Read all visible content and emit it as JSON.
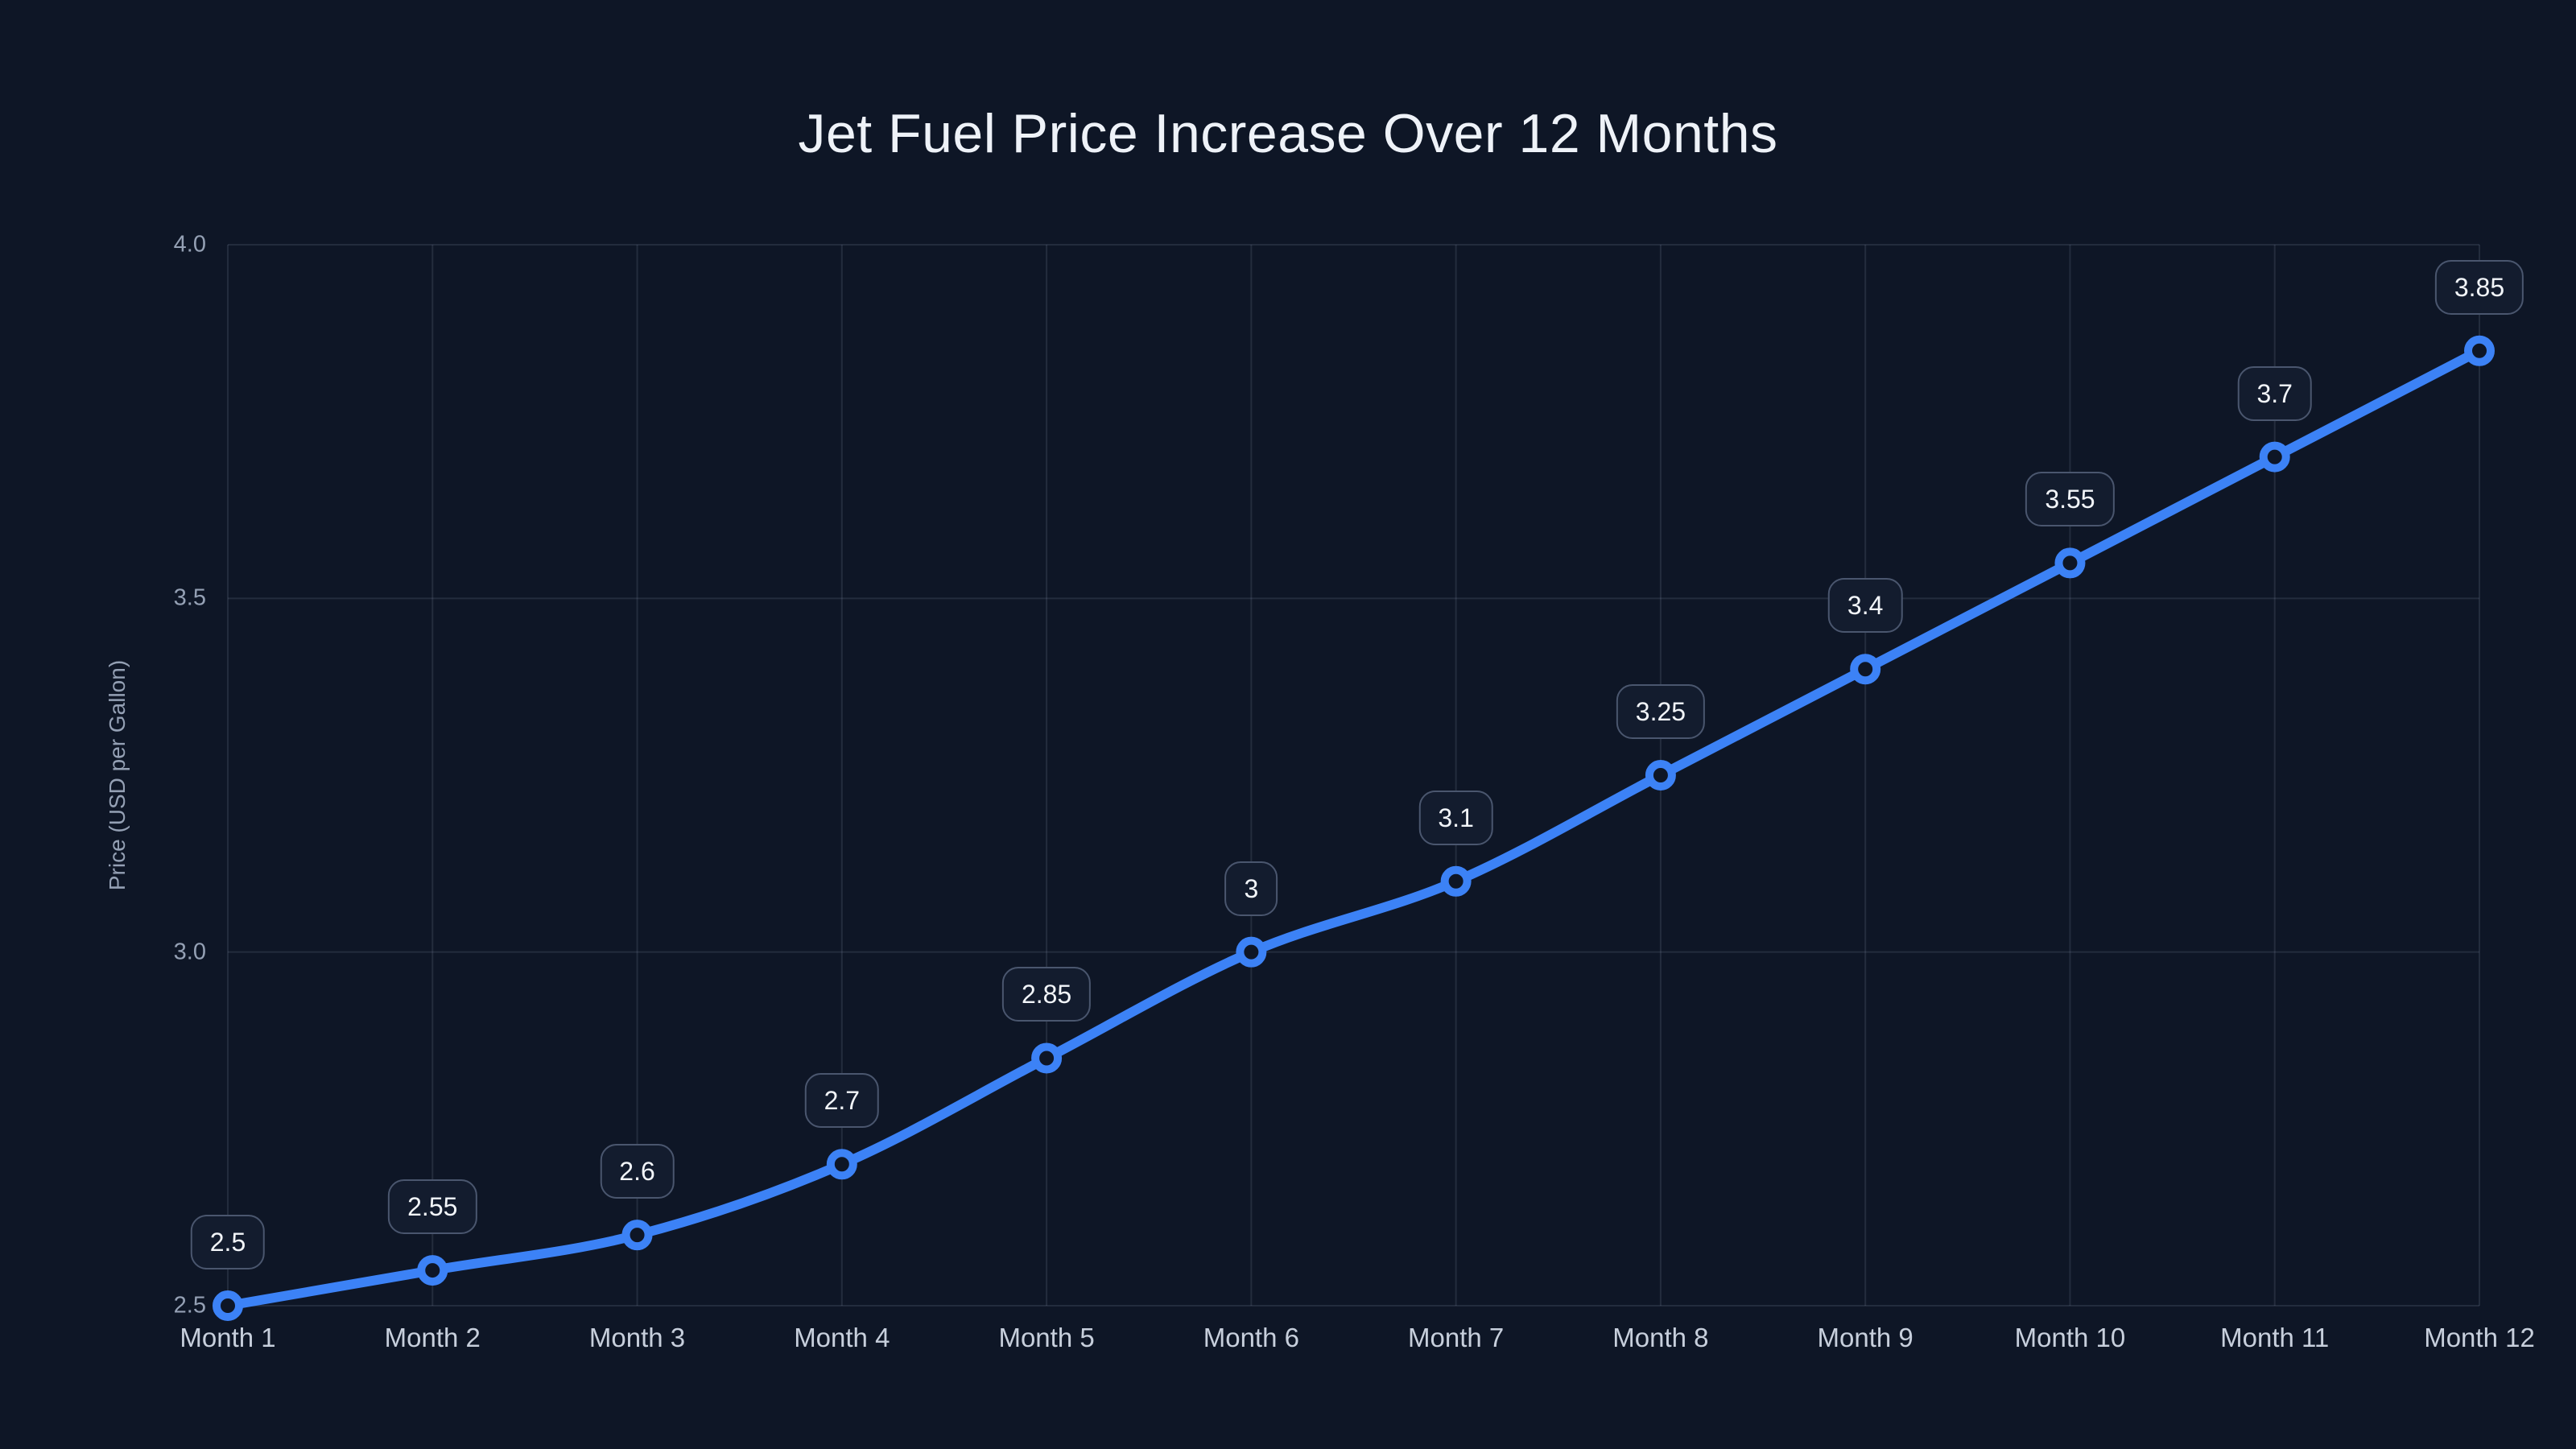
{
  "chart_data": {
    "type": "line",
    "title": "Jet Fuel Price Increase Over 12 Months",
    "ylabel": "Price (USD per Gallon)",
    "xlabel": "",
    "categories": [
      "Month 1",
      "Month 2",
      "Month 3",
      "Month 4",
      "Month 5",
      "Month 6",
      "Month 7",
      "Month 8",
      "Month 9",
      "Month 10",
      "Month 11",
      "Month 12"
    ],
    "values": [
      2.5,
      2.55,
      2.6,
      2.7,
      2.85,
      3,
      3.1,
      3.25,
      3.4,
      3.55,
      3.7,
      3.85
    ],
    "point_labels": [
      "2.5",
      "2.55",
      "2.6",
      "2.7",
      "2.85",
      "3",
      "3.1",
      "3.25",
      "3.4",
      "3.55",
      "3.7",
      "3.85"
    ],
    "ylim": [
      2.5,
      4.0
    ],
    "yticks": [
      "4.0",
      "3.5",
      "3.0",
      "2.5"
    ],
    "grid": "on",
    "legend": "none",
    "colors": {
      "background": "#0e1626",
      "line": "#3c82f6",
      "marker_ring": "#3c82f6",
      "marker_fill": "#0e1626",
      "grid_line": "rgba(148, 163, 184, 0.16)",
      "title_text": "#eef2f8",
      "axis_tick_text": "#94a0b4",
      "x_label_text": "#c7cfdc",
      "badge_background": "#131c2e",
      "badge_border": "#4a566e",
      "badge_text": "#f2f5f9"
    }
  }
}
